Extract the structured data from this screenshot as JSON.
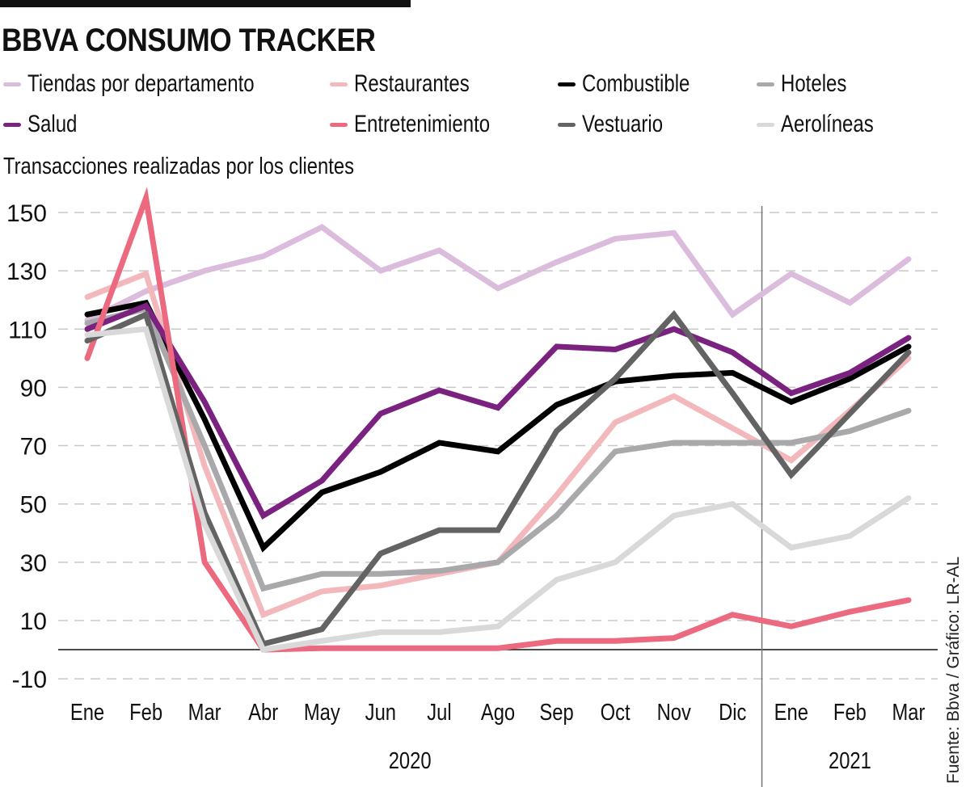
{
  "header": {
    "title": "BBVA CONSUMO TRACKER",
    "subtitle": "Transacciones realizadas por los clientes"
  },
  "source": "Fuente: Bbva / Gráfico: LR-AL",
  "chart_data": {
    "type": "line",
    "title": "BBVA CONSUMO TRACKER",
    "subtitle": "Transacciones realizadas por los clientes",
    "xlabel": "",
    "ylabel": "",
    "x": [
      "Ene",
      "Feb",
      "Mar",
      "Abr",
      "May",
      "Jun",
      "Jul",
      "Ago",
      "Sep",
      "Oct",
      "Nov",
      "Dic",
      "Ene",
      "Feb",
      "Mar"
    ],
    "year_groups": [
      {
        "label": "2020",
        "from": 0,
        "to": 11
      },
      {
        "label": "2021",
        "from": 12,
        "to": 14
      }
    ],
    "yticks": [
      150,
      130,
      110,
      90,
      70,
      50,
      30,
      10,
      -10
    ],
    "ylim": [
      -15,
      155
    ],
    "grid": "horizontal-dashed",
    "zero_line": true,
    "year_divider_after_index": 11,
    "legend_position": "top",
    "series": [
      {
        "name": "Tiendas por departamento",
        "color": "#dbbcdc",
        "values": [
          113,
          123,
          130,
          135,
          145,
          130,
          137,
          124,
          133,
          141,
          143,
          115,
          129,
          119,
          134
        ]
      },
      {
        "name": "Restaurantes",
        "color": "#f2b8bb",
        "values": [
          121,
          129,
          63,
          12,
          20,
          22,
          26,
          30,
          53,
          78,
          87,
          76,
          65,
          82,
          100
        ]
      },
      {
        "name": "Combustible",
        "color": "#000000",
        "values": [
          115,
          119,
          79,
          35,
          54,
          61,
          71,
          68,
          84,
          92,
          94,
          95,
          85,
          93,
          104
        ]
      },
      {
        "name": "Hoteles",
        "color": "#a9a8aa",
        "values": [
          112,
          117,
          70,
          21,
          26,
          26,
          27,
          30,
          46,
          68,
          71,
          71,
          71,
          75,
          82
        ]
      },
      {
        "name": "Salud",
        "color": "#7b2280",
        "values": [
          110,
          118,
          85,
          46,
          58,
          81,
          89,
          83,
          104,
          103,
          110,
          102,
          88,
          95,
          107
        ]
      },
      {
        "name": "Entretenimiento",
        "color": "#ec6a80",
        "values": [
          100,
          155,
          30,
          0,
          0.5,
          0.5,
          0.5,
          0.5,
          3,
          3,
          4,
          12,
          8,
          13,
          17
        ]
      },
      {
        "name": "Vestuario",
        "color": "#636363",
        "values": [
          106,
          115,
          47,
          2,
          7,
          33,
          41,
          41,
          75,
          93,
          115,
          88,
          60,
          81,
          102
        ]
      },
      {
        "name": "Aerolíneas",
        "color": "#d9d9d9",
        "values": [
          108,
          110,
          43,
          0,
          3,
          6,
          6,
          8,
          24,
          30,
          46,
          50,
          35,
          39,
          52
        ]
      }
    ]
  }
}
